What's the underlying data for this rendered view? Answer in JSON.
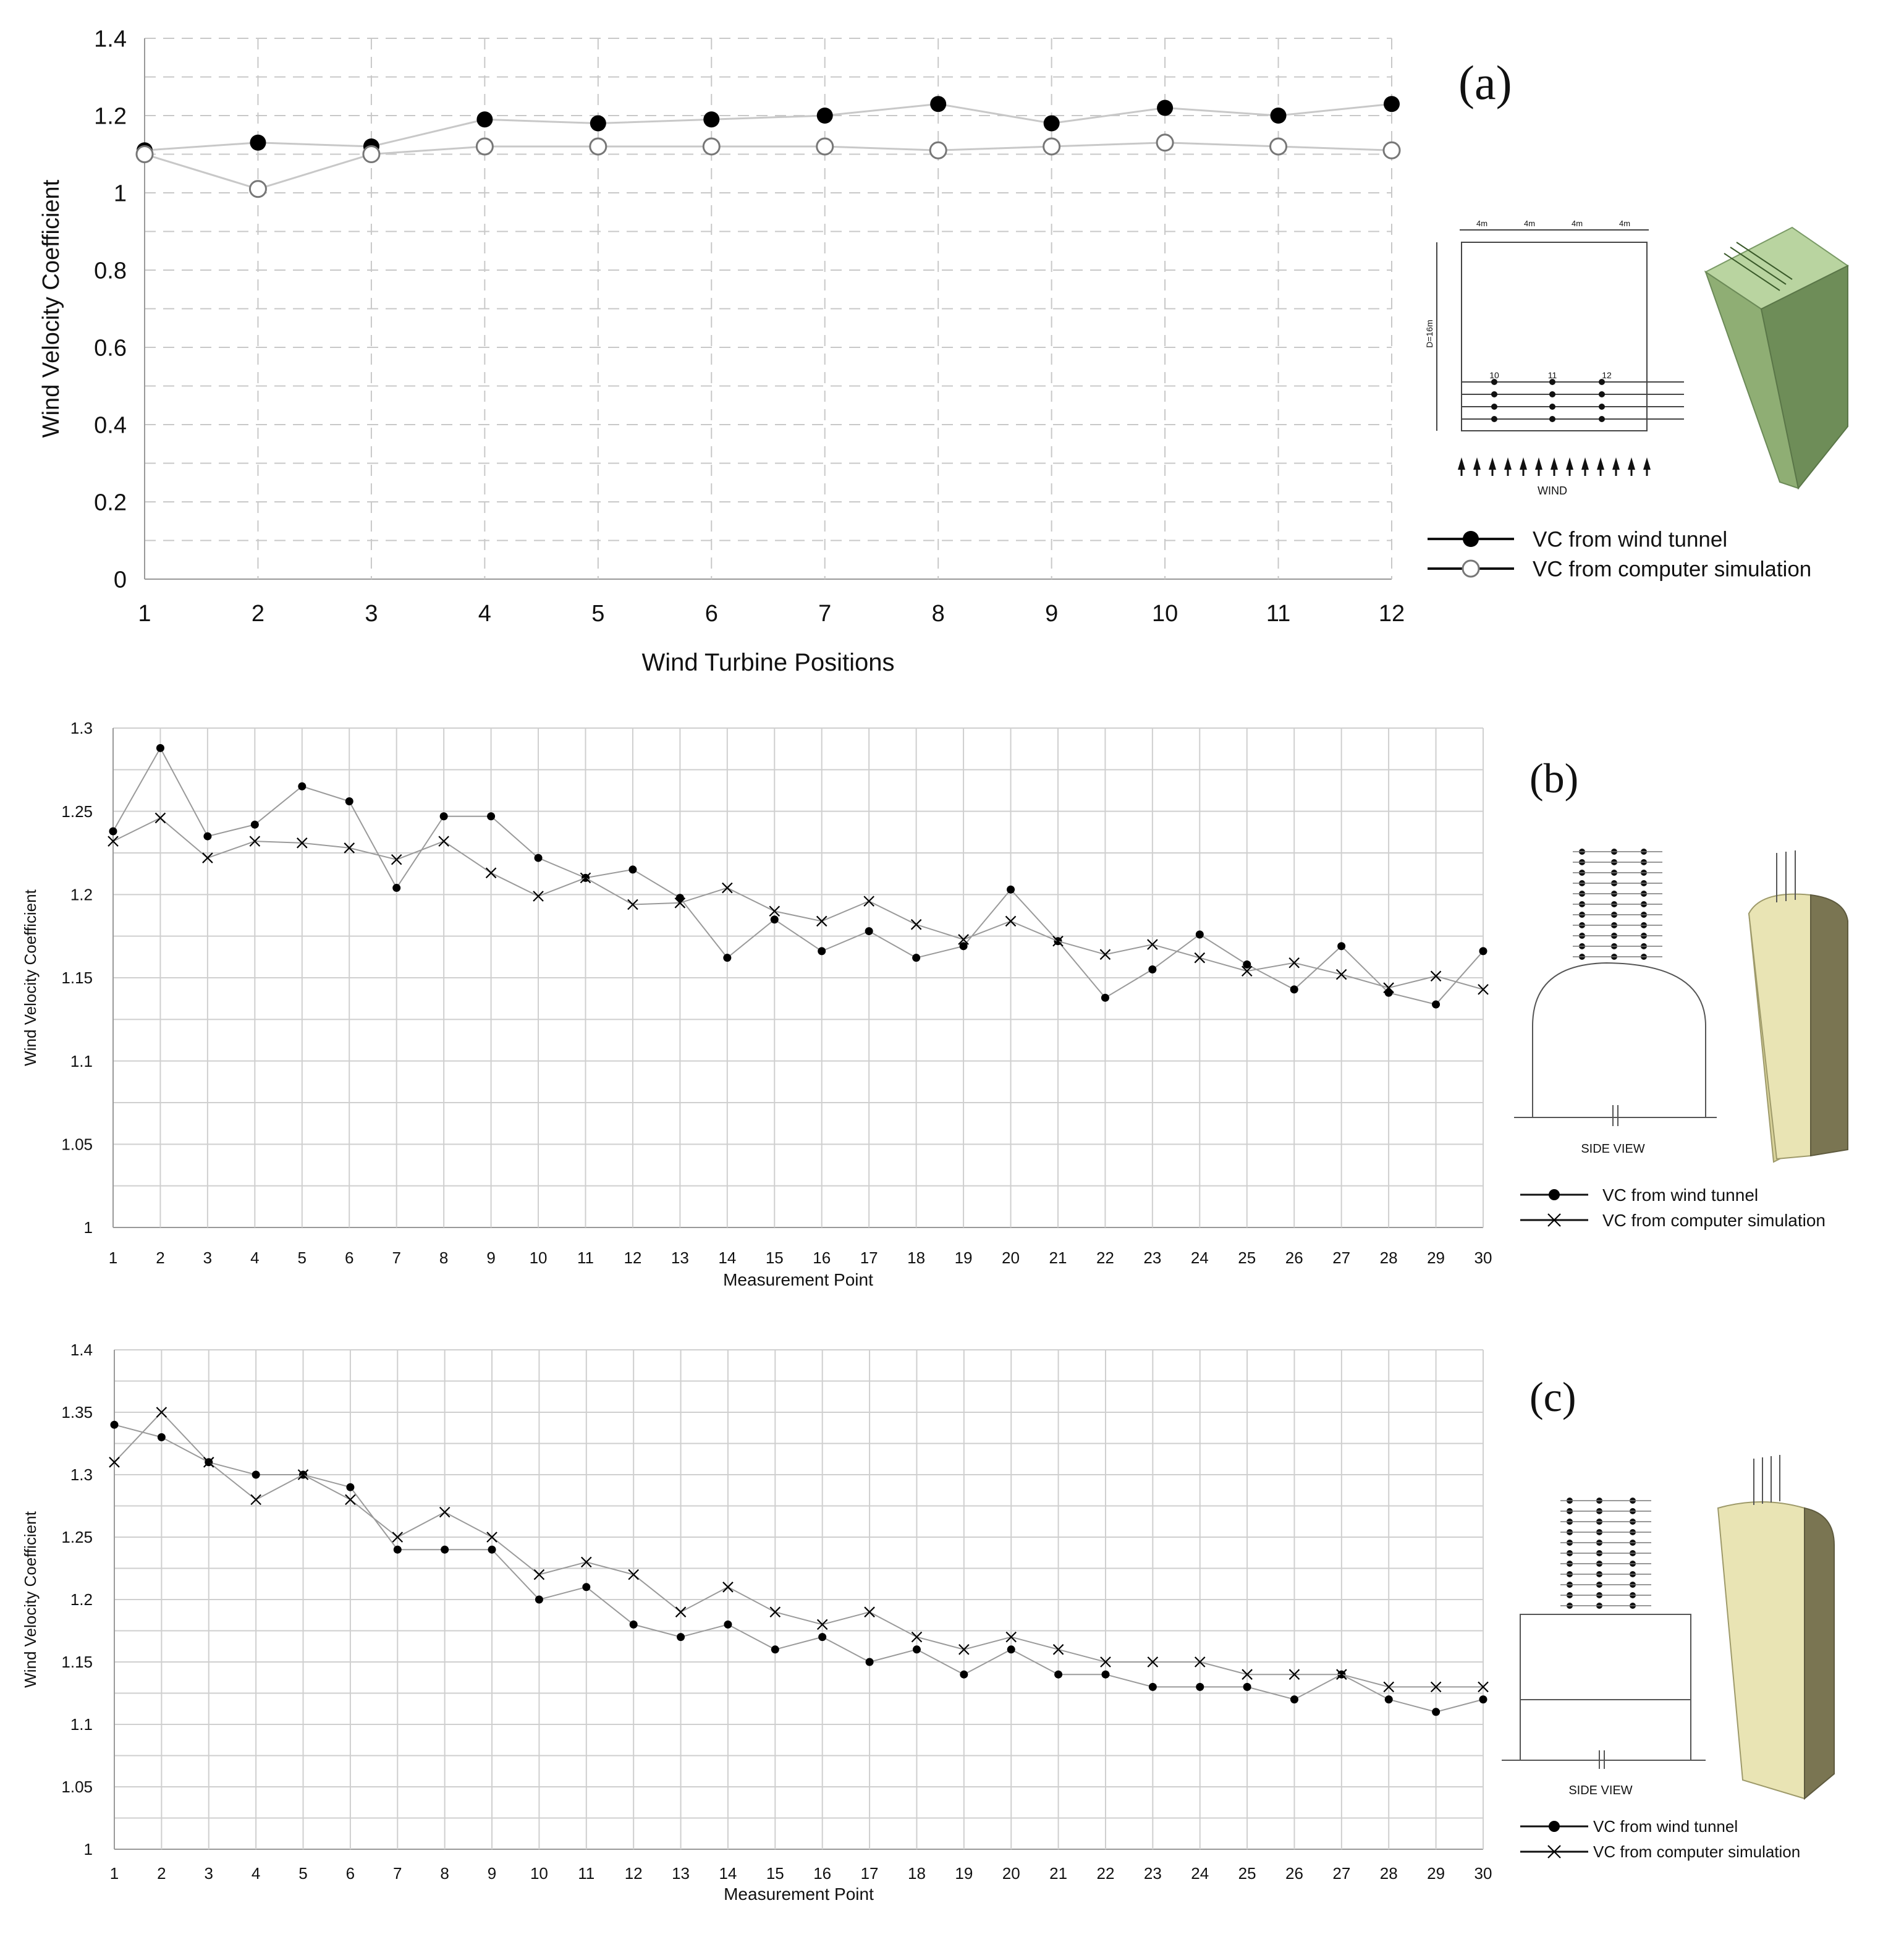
{
  "chart_data": [
    {
      "panel": "(a)",
      "type": "line",
      "xlabel": "Wind Turbine Positions",
      "ylabel": "Wind Velocity Coefficient",
      "categories": [
        "1",
        "2",
        "3",
        "4",
        "5",
        "6",
        "7",
        "8",
        "9",
        "10",
        "11",
        "12"
      ],
      "ylim": [
        0,
        1.4
      ],
      "yticks": [
        "0",
        "0.2",
        "0.4",
        "0.6",
        "0.8",
        "1",
        "1.2",
        "1.4"
      ],
      "grid": "dashed",
      "series": [
        {
          "name": "VC from wind tunnel",
          "marker": "filled-circle",
          "values": [
            1.11,
            1.13,
            1.12,
            1.19,
            1.18,
            1.19,
            1.2,
            1.23,
            1.18,
            1.22,
            1.2,
            1.23
          ]
        },
        {
          "name": "VC from computer simulation",
          "marker": "open-circle",
          "values": [
            1.1,
            1.01,
            1.1,
            1.12,
            1.12,
            1.12,
            1.12,
            1.11,
            1.12,
            1.13,
            1.12,
            1.11
          ]
        }
      ],
      "legend": "bottom-right",
      "diagram_labels": {
        "dims": [
          "4m",
          "4m",
          "4m",
          "4m"
        ],
        "height": "D=16m",
        "points": [
          "10",
          "11",
          "12"
        ],
        "wind": "WIND"
      }
    },
    {
      "panel": "(b)",
      "type": "line",
      "xlabel": "Measurement Point",
      "ylabel": "Wind Velocity Coefficient",
      "categories": [
        "1",
        "2",
        "3",
        "4",
        "5",
        "6",
        "7",
        "8",
        "9",
        "10",
        "11",
        "12",
        "13",
        "14",
        "15",
        "16",
        "17",
        "18",
        "19",
        "20",
        "21",
        "22",
        "23",
        "24",
        "25",
        "26",
        "27",
        "28",
        "29",
        "30"
      ],
      "ylim": [
        1,
        1.3
      ],
      "yticks": [
        "1",
        "1.05",
        "1.1",
        "1.15",
        "1.2",
        "1.25",
        "1.3"
      ],
      "grid": "solid",
      "series": [
        {
          "name": "VC from wind tunnel",
          "marker": "dot",
          "values": [
            1.238,
            1.288,
            1.235,
            1.242,
            1.265,
            1.256,
            1.204,
            1.247,
            1.247,
            1.222,
            1.21,
            1.215,
            1.198,
            1.162,
            1.185,
            1.166,
            1.178,
            1.162,
            1.169,
            1.203,
            1.172,
            1.138,
            1.155,
            1.176,
            1.158,
            1.143,
            1.169,
            1.141,
            1.134,
            1.166
          ]
        },
        {
          "name": "VC from computer simulation",
          "marker": "x",
          "values": [
            1.232,
            1.246,
            1.222,
            1.232,
            1.231,
            1.228,
            1.221,
            1.232,
            1.213,
            1.199,
            1.21,
            1.194,
            1.195,
            1.204,
            1.19,
            1.184,
            1.196,
            1.182,
            1.173,
            1.184,
            1.172,
            1.164,
            1.17,
            1.162,
            1.154,
            1.159,
            1.152,
            1.144,
            1.151,
            1.143
          ]
        }
      ],
      "legend": "bottom-right",
      "diagram_label": "SIDE VIEW"
    },
    {
      "panel": "(c)",
      "type": "line",
      "xlabel": "Measurement Point",
      "ylabel": "Wind Velocity Coefficient",
      "categories": [
        "1",
        "2",
        "3",
        "4",
        "5",
        "6",
        "7",
        "8",
        "9",
        "10",
        "11",
        "12",
        "13",
        "14",
        "15",
        "16",
        "17",
        "18",
        "19",
        "20",
        "21",
        "22",
        "23",
        "24",
        "25",
        "26",
        "27",
        "28",
        "29",
        "30"
      ],
      "ylim": [
        1,
        1.4
      ],
      "yticks": [
        "1",
        "1.05",
        "1.1",
        "1.15",
        "1.2",
        "1.25",
        "1.3",
        "1.35",
        "1.4"
      ],
      "grid": "solid",
      "series": [
        {
          "name": "VC from wind tunnel",
          "marker": "dot",
          "values": [
            1.34,
            1.33,
            1.31,
            1.3,
            1.3,
            1.29,
            1.24,
            1.24,
            1.24,
            1.2,
            1.21,
            1.18,
            1.17,
            1.18,
            1.16,
            1.17,
            1.15,
            1.16,
            1.14,
            1.16,
            1.14,
            1.14,
            1.13,
            1.13,
            1.13,
            1.12,
            1.14,
            1.12,
            1.11,
            1.12
          ]
        },
        {
          "name": "VC from computer simulation",
          "marker": "x",
          "values": [
            1.31,
            1.35,
            1.31,
            1.28,
            1.3,
            1.28,
            1.25,
            1.27,
            1.25,
            1.22,
            1.23,
            1.22,
            1.19,
            1.21,
            1.19,
            1.18,
            1.19,
            1.17,
            1.16,
            1.17,
            1.16,
            1.15,
            1.15,
            1.15,
            1.14,
            1.14,
            1.14,
            1.13,
            1.13,
            1.13
          ]
        }
      ],
      "legend": "bottom-right",
      "diagram_label": "SIDE VIEW"
    }
  ]
}
